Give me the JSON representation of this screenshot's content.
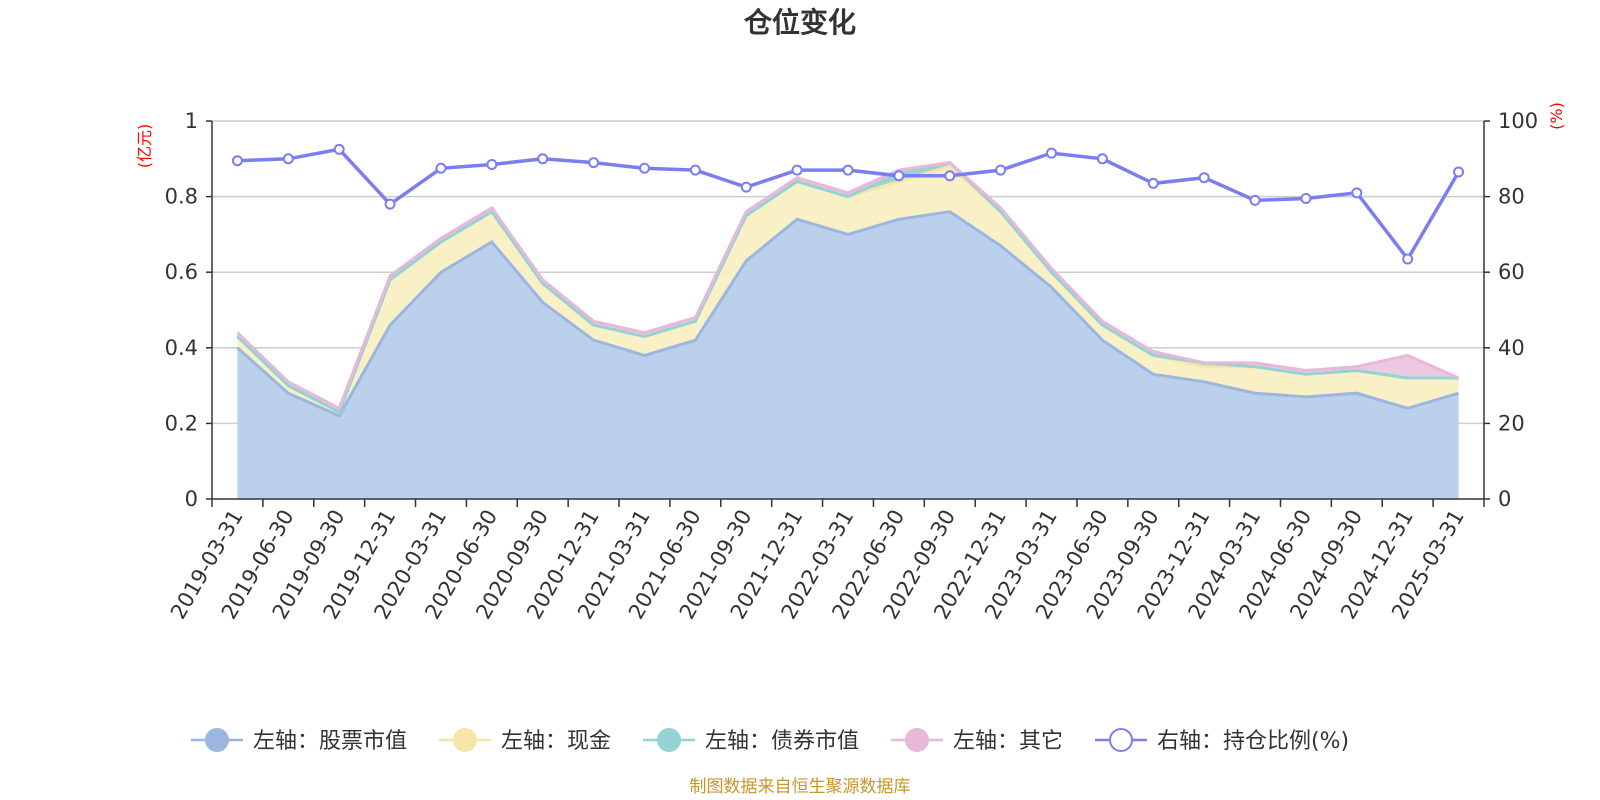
{
  "chart_data": {
    "type": "area",
    "title": "仓位变化",
    "left_unit": "(亿元)",
    "right_unit": "(%)",
    "source": "制图数据来自恒生聚源数据库",
    "x": [
      "2019-03-31",
      "2019-06-30",
      "2019-09-30",
      "2019-12-31",
      "2020-03-31",
      "2020-06-30",
      "2020-09-30",
      "2020-12-31",
      "2021-03-31",
      "2021-06-30",
      "2021-09-30",
      "2021-12-31",
      "2022-03-31",
      "2022-06-30",
      "2022-09-30",
      "2022-12-31",
      "2023-03-31",
      "2023-06-30",
      "2023-09-30",
      "2023-12-31",
      "2024-03-31",
      "2024-06-30",
      "2024-09-30",
      "2024-12-31",
      "2025-03-31"
    ],
    "ylim_left": [
      0,
      1
    ],
    "yticks_left": [
      "0",
      "0.2",
      "0.4",
      "0.6",
      "0.8",
      "1"
    ],
    "ylim_right": [
      0,
      100
    ],
    "yticks_right": [
      "0",
      "20",
      "40",
      "60",
      "80",
      "100"
    ],
    "grid": true,
    "legend_position": "bottom",
    "series": [
      {
        "name": "左轴：股票市值",
        "axis": "left",
        "stacked": true,
        "color": "#9bb6e0",
        "fill": "#b7cdea",
        "values": [
          0.4,
          0.28,
          0.22,
          0.46,
          0.6,
          0.68,
          0.52,
          0.42,
          0.38,
          0.42,
          0.63,
          0.74,
          0.7,
          0.74,
          0.76,
          0.67,
          0.56,
          0.42,
          0.33,
          0.31,
          0.28,
          0.27,
          0.28,
          0.24,
          0.28
        ]
      },
      {
        "name": "左轴：现金",
        "axis": "left",
        "stacked": true,
        "color": "#f5e6a8",
        "fill": "#faefc3",
        "values": [
          0.03,
          0.02,
          0.01,
          0.12,
          0.08,
          0.08,
          0.05,
          0.04,
          0.05,
          0.05,
          0.12,
          0.1,
          0.1,
          0.1,
          0.12,
          0.09,
          0.04,
          0.04,
          0.05,
          0.04,
          0.07,
          0.06,
          0.06,
          0.08,
          0.04
        ]
      },
      {
        "name": "左轴：债券市值",
        "axis": "left",
        "stacked": true,
        "color": "#93d3d3",
        "fill": "#93d3d3",
        "values": [
          0,
          0,
          0,
          0,
          0,
          0,
          0,
          0,
          0,
          0,
          0,
          0,
          0,
          0.02,
          0.01,
          0,
          0,
          0,
          0,
          0.01,
          0,
          0,
          0,
          0,
          0
        ]
      },
      {
        "name": "左轴：其它",
        "axis": "left",
        "stacked": true,
        "color": "#e8b7da",
        "fill": "#ecc5e0",
        "values": [
          0.01,
          0.01,
          0.01,
          0.01,
          0.01,
          0.01,
          0.01,
          0.01,
          0.01,
          0.01,
          0.01,
          0.01,
          0.01,
          0.01,
          0,
          0.01,
          0.01,
          0.01,
          0.01,
          0,
          0.01,
          0.01,
          0.01,
          0.06,
          0
        ]
      },
      {
        "name": "右轴：持仓比例(%)",
        "axis": "right",
        "type": "line",
        "color": "#7b7ef0",
        "values": [
          89.5,
          90,
          92.5,
          78,
          87.5,
          88.5,
          90,
          89,
          87.5,
          87,
          82.5,
          87,
          87,
          85.5,
          85.5,
          87,
          91.5,
          90,
          83.5,
          85,
          79,
          79.5,
          81,
          63.5,
          86.5
        ]
      }
    ]
  }
}
